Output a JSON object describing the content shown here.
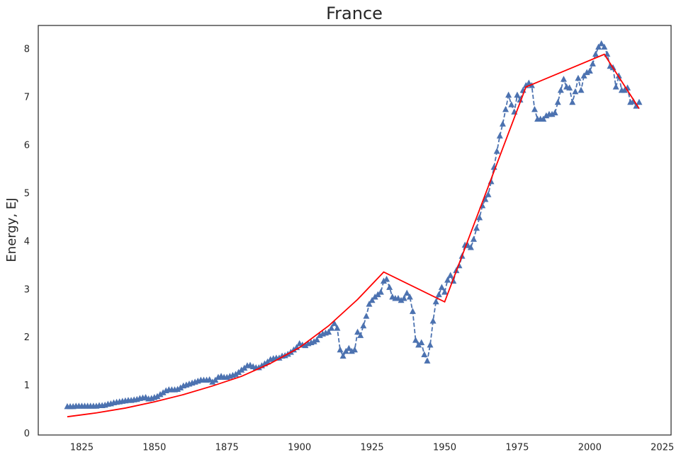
{
  "chart_data": {
    "type": "line",
    "title": "France",
    "ylabel": "Energy, EJ",
    "xlim": [
      1810,
      2028
    ],
    "ylim": [
      -0.02,
      8.5
    ],
    "xticks": [
      1825,
      1850,
      1875,
      1900,
      1925,
      1950,
      1975,
      2000,
      2025
    ],
    "yticks": [
      0,
      1,
      2,
      3,
      4,
      5,
      6,
      7,
      8
    ],
    "grid": false,
    "series": [
      {
        "color": "#4c72b0",
        "style": "dashed",
        "marker": "triangle",
        "x": [
          1820,
          1821,
          1822,
          1823,
          1824,
          1825,
          1826,
          1827,
          1828,
          1829,
          1830,
          1831,
          1832,
          1833,
          1834,
          1835,
          1836,
          1837,
          1838,
          1839,
          1840,
          1841,
          1842,
          1843,
          1844,
          1845,
          1846,
          1847,
          1848,
          1849,
          1850,
          1851,
          1852,
          1853,
          1854,
          1855,
          1856,
          1857,
          1858,
          1859,
          1860,
          1861,
          1862,
          1863,
          1864,
          1865,
          1866,
          1867,
          1868,
          1869,
          1870,
          1871,
          1872,
          1873,
          1874,
          1875,
          1876,
          1877,
          1878,
          1879,
          1880,
          1881,
          1882,
          1883,
          1884,
          1885,
          1886,
          1887,
          1888,
          1889,
          1890,
          1891,
          1892,
          1893,
          1894,
          1895,
          1896,
          1897,
          1898,
          1899,
          1900,
          1901,
          1902,
          1903,
          1904,
          1905,
          1906,
          1907,
          1908,
          1909,
          1910,
          1911,
          1912,
          1913,
          1914,
          1915,
          1916,
          1917,
          1918,
          1919,
          1920,
          1921,
          1922,
          1923,
          1924,
          1925,
          1926,
          1927,
          1928,
          1929,
          1930,
          1931,
          1932,
          1933,
          1934,
          1935,
          1936,
          1937,
          1938,
          1939,
          1940,
          1941,
          1942,
          1943,
          1944,
          1945,
          1946,
          1947,
          1948,
          1949,
          1950,
          1951,
          1952,
          1953,
          1954,
          1955,
          1956,
          1957,
          1958,
          1959,
          1960,
          1961,
          1962,
          1963,
          1964,
          1965,
          1966,
          1967,
          1968,
          1969,
          1970,
          1971,
          1972,
          1973,
          1974,
          1975,
          1976,
          1977,
          1978,
          1979,
          1980,
          1981,
          1982,
          1983,
          1984,
          1985,
          1986,
          1987,
          1988,
          1989,
          1990,
          1991,
          1992,
          1993,
          1994,
          1995,
          1996,
          1997,
          1998,
          1999,
          2000,
          2001,
          2002,
          2003,
          2004,
          2005,
          2006,
          2007,
          2008,
          2009,
          2010,
          2011,
          2012,
          2013,
          2014,
          2015,
          2016,
          2017
        ],
        "values": [
          0.57,
          0.57,
          0.57,
          0.58,
          0.58,
          0.58,
          0.58,
          0.58,
          0.58,
          0.58,
          0.58,
          0.59,
          0.59,
          0.6,
          0.62,
          0.63,
          0.65,
          0.66,
          0.67,
          0.68,
          0.69,
          0.7,
          0.7,
          0.71,
          0.72,
          0.74,
          0.75,
          0.76,
          0.73,
          0.74,
          0.76,
          0.78,
          0.82,
          0.86,
          0.9,
          0.92,
          0.92,
          0.92,
          0.93,
          0.96,
          1.0,
          1.02,
          1.04,
          1.06,
          1.08,
          1.1,
          1.12,
          1.12,
          1.12,
          1.13,
          1.08,
          1.12,
          1.18,
          1.2,
          1.18,
          1.18,
          1.2,
          1.22,
          1.24,
          1.28,
          1.33,
          1.37,
          1.42,
          1.43,
          1.4,
          1.38,
          1.38,
          1.42,
          1.46,
          1.5,
          1.55,
          1.57,
          1.58,
          1.58,
          1.62,
          1.63,
          1.66,
          1.7,
          1.75,
          1.8,
          1.88,
          1.85,
          1.84,
          1.88,
          1.9,
          1.92,
          1.96,
          2.05,
          2.08,
          2.1,
          2.12,
          2.2,
          2.3,
          2.2,
          1.75,
          1.62,
          1.72,
          1.78,
          1.72,
          1.75,
          2.12,
          2.05,
          2.25,
          2.45,
          2.7,
          2.78,
          2.85,
          2.9,
          2.95,
          3.18,
          3.22,
          3.05,
          2.85,
          2.82,
          2.82,
          2.78,
          2.82,
          2.93,
          2.85,
          2.55,
          1.95,
          1.85,
          1.9,
          1.65,
          1.52,
          1.85,
          2.35,
          2.75,
          2.9,
          3.05,
          2.95,
          3.2,
          3.3,
          3.18,
          3.4,
          3.5,
          3.7,
          3.93,
          3.92,
          3.88,
          4.05,
          4.28,
          4.5,
          4.75,
          4.88,
          4.98,
          5.25,
          5.55,
          5.88,
          6.2,
          6.45,
          6.75,
          7.05,
          6.85,
          6.7,
          7.05,
          6.95,
          7.15,
          7.25,
          7.3,
          7.25,
          6.75,
          6.55,
          6.55,
          6.55,
          6.62,
          6.65,
          6.65,
          6.68,
          6.9,
          7.15,
          7.38,
          7.22,
          7.2,
          6.9,
          7.12,
          7.4,
          7.15,
          7.45,
          7.52,
          7.55,
          7.7,
          7.9,
          8.05,
          8.12,
          8.05,
          7.9,
          7.65,
          7.62,
          7.22,
          7.45,
          7.15,
          7.15,
          7.2,
          6.9,
          6.92,
          6.82,
          6.9
        ]
      },
      {
        "color": "#ff0000",
        "style": "solid",
        "x": [
          1820,
          1830,
          1840,
          1850,
          1860,
          1870,
          1880,
          1890,
          1900,
          1910,
          1920,
          1929,
          1950,
          1978,
          2005,
          2017
        ],
        "values": [
          0.36,
          0.44,
          0.54,
          0.67,
          0.82,
          1.0,
          1.2,
          1.47,
          1.8,
          2.25,
          2.8,
          3.37,
          2.75,
          7.22,
          7.9,
          6.77
        ]
      }
    ]
  }
}
